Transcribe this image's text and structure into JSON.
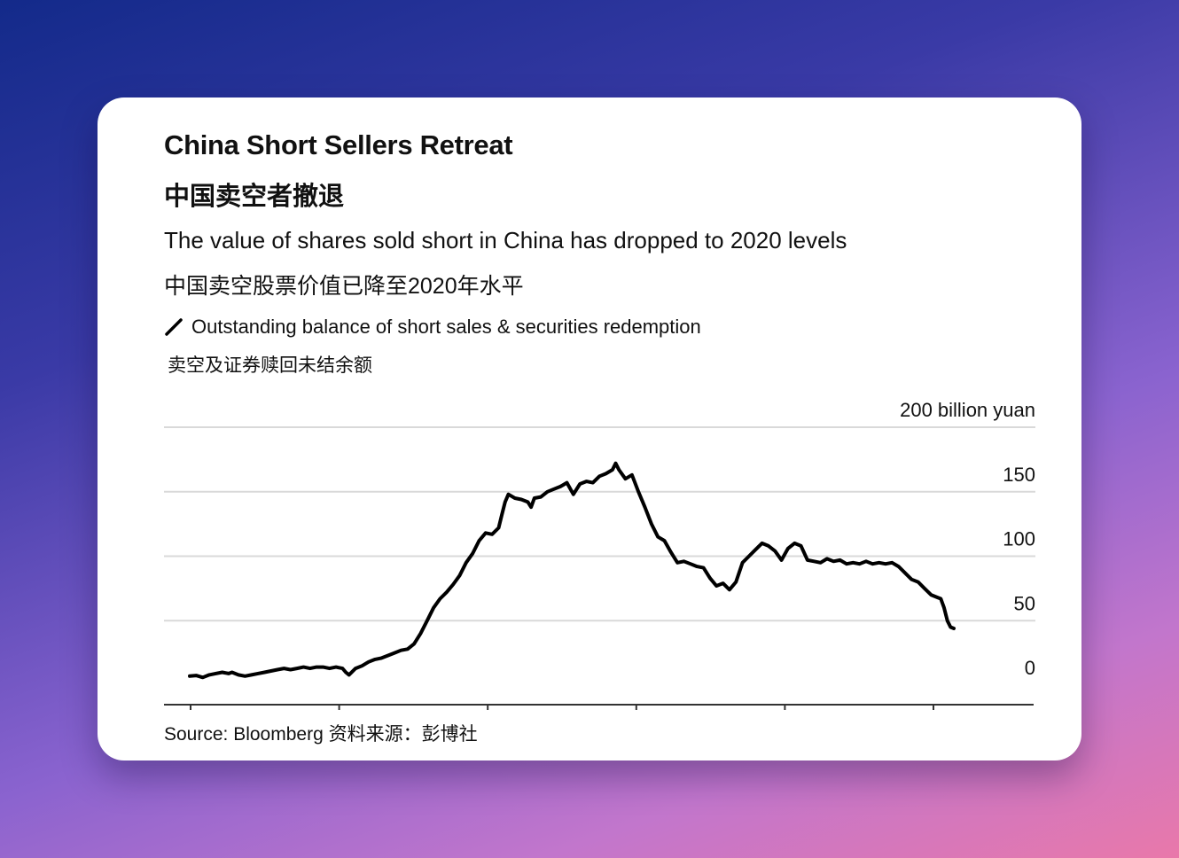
{
  "header": {
    "title_en": "China Short Sellers Retreat",
    "title_zh": "中国卖空者撤退",
    "subtitle_en": "The value of shares sold short in China has dropped to 2020 levels",
    "subtitle_zh": "中国卖空股票价值已降至2020年水平"
  },
  "legend": {
    "label_en": "Outstanding balance of short sales & securities redemption",
    "label_zh": "卖空及证券赎回未结余额"
  },
  "source": "Source: Bloomberg 资料来源：彭博社",
  "colors": {
    "line": "#000000",
    "grid": "#d9d9d9",
    "axis": "#333333",
    "card": "#ffffff"
  },
  "chart_data": {
    "type": "line",
    "title": "China Short Sellers Retreat",
    "xlabel": "",
    "ylabel": "",
    "ylim": [
      0,
      200
    ],
    "y_ticks": [
      {
        "value": 0,
        "label": "0"
      },
      {
        "value": 50,
        "label": "50"
      },
      {
        "value": 100,
        "label": "100"
      },
      {
        "value": 150,
        "label": "150"
      },
      {
        "value": 200,
        "label": "200 billion yuan"
      }
    ],
    "x_tick_count": 6,
    "grid": true,
    "legend_position": "top-left",
    "series": [
      {
        "name": "Outstanding balance of short sales & securities redemption",
        "points": [
          [
            0,
            7
          ],
          [
            2,
            7.5
          ],
          [
            4,
            6
          ],
          [
            6,
            8
          ],
          [
            8,
            9
          ],
          [
            10,
            10
          ],
          [
            12,
            9
          ],
          [
            13,
            10
          ],
          [
            15,
            8
          ],
          [
            17,
            7
          ],
          [
            19,
            8
          ],
          [
            21,
            9
          ],
          [
            23,
            10
          ],
          [
            25,
            11
          ],
          [
            27,
            12
          ],
          [
            29,
            13
          ],
          [
            31,
            12
          ],
          [
            33,
            13
          ],
          [
            35,
            14
          ],
          [
            37,
            13
          ],
          [
            39,
            14
          ],
          [
            41,
            14
          ],
          [
            43,
            13
          ],
          [
            45,
            14
          ],
          [
            47,
            13
          ],
          [
            48,
            10
          ],
          [
            49,
            8
          ],
          [
            51,
            13
          ],
          [
            53,
            15
          ],
          [
            55,
            18
          ],
          [
            57,
            20
          ],
          [
            59,
            21
          ],
          [
            61,
            23
          ],
          [
            63,
            25
          ],
          [
            65,
            27
          ],
          [
            67,
            28
          ],
          [
            69,
            32
          ],
          [
            71,
            40
          ],
          [
            73,
            50
          ],
          [
            75,
            60
          ],
          [
            77,
            67
          ],
          [
            79,
            72
          ],
          [
            81,
            78
          ],
          [
            83,
            85
          ],
          [
            85,
            95
          ],
          [
            87,
            102
          ],
          [
            89,
            112
          ],
          [
            91,
            118
          ],
          [
            93,
            117
          ],
          [
            95,
            122
          ],
          [
            96,
            132
          ],
          [
            97,
            142
          ],
          [
            98,
            148
          ],
          [
            100,
            145
          ],
          [
            102,
            144
          ],
          [
            104,
            142
          ],
          [
            105,
            138
          ],
          [
            106,
            145
          ],
          [
            108,
            146
          ],
          [
            110,
            150
          ],
          [
            112,
            152
          ],
          [
            114,
            154
          ],
          [
            116,
            157
          ],
          [
            118,
            148
          ],
          [
            120,
            156
          ],
          [
            122,
            158
          ],
          [
            124,
            157
          ],
          [
            126,
            162
          ],
          [
            128,
            164
          ],
          [
            130,
            167
          ],
          [
            131,
            172
          ],
          [
            132,
            167
          ],
          [
            134,
            160
          ],
          [
            136,
            163
          ],
          [
            138,
            150
          ],
          [
            140,
            138
          ],
          [
            142,
            125
          ],
          [
            144,
            115
          ],
          [
            146,
            112
          ],
          [
            148,
            103
          ],
          [
            150,
            95
          ],
          [
            152,
            96
          ],
          [
            154,
            94
          ],
          [
            156,
            92
          ],
          [
            158,
            91
          ],
          [
            160,
            83
          ],
          [
            162,
            77
          ],
          [
            164,
            79
          ],
          [
            166,
            74
          ],
          [
            168,
            80
          ],
          [
            170,
            95
          ],
          [
            172,
            100
          ],
          [
            174,
            105
          ],
          [
            176,
            110
          ],
          [
            178,
            108
          ],
          [
            180,
            104
          ],
          [
            182,
            97
          ],
          [
            184,
            106
          ],
          [
            186,
            110
          ],
          [
            188,
            108
          ],
          [
            190,
            97
          ],
          [
            192,
            96
          ],
          [
            194,
            95
          ],
          [
            196,
            98
          ],
          [
            198,
            96
          ],
          [
            200,
            97
          ],
          [
            202,
            94
          ],
          [
            204,
            95
          ],
          [
            206,
            94
          ],
          [
            208,
            96
          ],
          [
            210,
            94
          ],
          [
            212,
            95
          ],
          [
            214,
            94
          ],
          [
            216,
            95
          ],
          [
            218,
            92
          ],
          [
            220,
            87
          ],
          [
            222,
            82
          ],
          [
            224,
            80
          ],
          [
            226,
            75
          ],
          [
            228,
            70
          ],
          [
            230,
            68
          ],
          [
            231,
            67
          ],
          [
            232,
            60
          ],
          [
            233,
            50
          ],
          [
            234,
            45
          ],
          [
            235,
            44
          ]
        ]
      }
    ]
  }
}
